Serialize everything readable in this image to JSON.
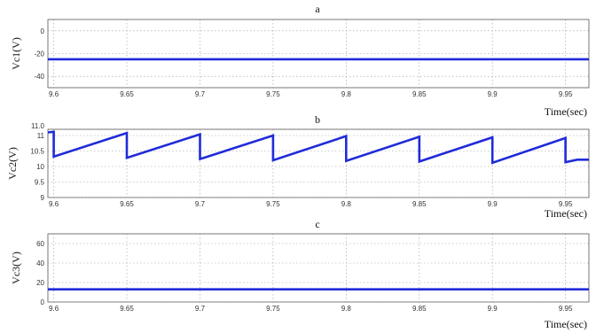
{
  "chart_data": [
    {
      "type": "line",
      "title": "a",
      "xlabel": "Time(sec)",
      "ylabel": "Vc1(V)",
      "xlim": [
        9.596,
        9.966
      ],
      "ylim": [
        -50,
        10
      ],
      "xticks": [
        9.6,
        9.65,
        9.7,
        9.75,
        9.8,
        9.85,
        9.9,
        9.95
      ],
      "xtick_labels": [
        "9.6",
        "9.65",
        "9.7",
        "9.75",
        "9.8",
        "9.85",
        "9.9",
        "9.95"
      ],
      "yticks": [
        0,
        -20,
        -40
      ],
      "ytick_labels": [
        "0",
        "-20",
        "-40"
      ],
      "grid": true,
      "color": "#1f2bd9",
      "series": [
        {
          "x": [
            9.596,
            9.966
          ],
          "y": [
            -25,
            -25
          ]
        }
      ]
    },
    {
      "type": "line",
      "title": "b",
      "xlabel": "Time(sec)",
      "ylabel": "Vc2(V)",
      "xlim": [
        9.596,
        9.966
      ],
      "ylim": [
        9.0,
        11.2
      ],
      "xticks": [
        9.6,
        9.65,
        9.7,
        9.75,
        9.8,
        9.85,
        9.9,
        9.95
      ],
      "xtick_labels": [
        "9.6",
        "9.65",
        "9.7",
        "9.75",
        "9.8",
        "9.85",
        "9.9",
        "9.95"
      ],
      "yticks": [
        11,
        10.5,
        10,
        9.5,
        9
      ],
      "ytick_labels": [
        "11",
        "10.5",
        "10",
        "9.5",
        "9"
      ],
      "ytick_top_label": "11.0",
      "grid": true,
      "color": "#1f2bd9",
      "series": [
        {
          "x": [
            9.596,
            9.6,
            9.6,
            9.65,
            9.65,
            9.7,
            9.7,
            9.75,
            9.75,
            9.8,
            9.8,
            9.85,
            9.85,
            9.9,
            9.9,
            9.95,
            9.95,
            9.958,
            9.966
          ],
          "y": [
            11.1,
            11.12,
            10.32,
            11.08,
            10.28,
            11.04,
            10.24,
            11.0,
            10.2,
            10.98,
            10.18,
            10.96,
            10.16,
            10.94,
            10.12,
            10.92,
            10.14,
            10.22,
            10.22
          ]
        }
      ]
    },
    {
      "type": "line",
      "title": "c",
      "xlabel": "Time(sec)",
      "ylabel": "Vc3(V)",
      "xlim": [
        9.596,
        9.966
      ],
      "ylim": [
        0,
        70
      ],
      "xticks": [
        9.6,
        9.65,
        9.7,
        9.75,
        9.8,
        9.85,
        9.9,
        9.95
      ],
      "xtick_labels": [
        "9.6",
        "9.65",
        "9.7",
        "9.75",
        "9.8",
        "9.85",
        "9.9",
        "9.95"
      ],
      "yticks": [
        60,
        40,
        20,
        0
      ],
      "ytick_labels": [
        "60",
        "40",
        "20",
        "0"
      ],
      "grid": true,
      "color": "#1f2bd9",
      "series": [
        {
          "x": [
            9.596,
            9.966
          ],
          "y": [
            13,
            13
          ]
        }
      ]
    }
  ]
}
